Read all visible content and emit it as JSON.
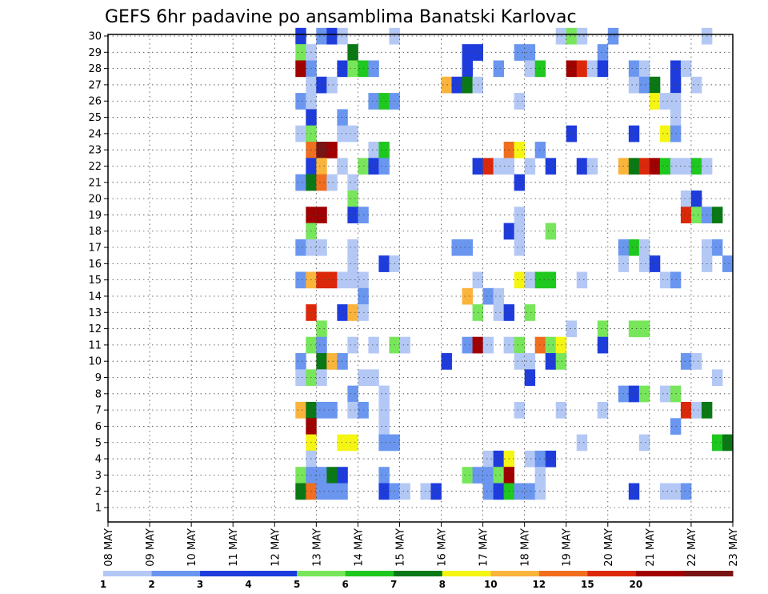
{
  "chart_data": {
    "type": "heatmap",
    "title": "GEFS 6hr padavine po ansamblima Banatski Karlovac",
    "xlabel": "",
    "ylabel": "",
    "x_tick_labels": [
      "08 MAY",
      "09 MAY",
      "10 MAY",
      "11 MAY",
      "12 MAY",
      "13 MAY",
      "14 MAY",
      "15 MAY",
      "16 MAY",
      "17 MAY",
      "18 MAY",
      "19 MAY",
      "20 MAY",
      "21 MAY",
      "22 MAY",
      "23 MAY"
    ],
    "y_tick_labels": [
      "1",
      "2",
      "3",
      "4",
      "5",
      "6",
      "7",
      "8",
      "9",
      "10",
      "11",
      "12",
      "13",
      "14",
      "15",
      "16",
      "17",
      "18",
      "19",
      "20",
      "21",
      "22",
      "23",
      "24",
      "25",
      "26",
      "27",
      "28",
      "29",
      "30"
    ],
    "time_steps_per_day": 4,
    "grid": true,
    "colorbar": {
      "position": "bottom",
      "labels": [
        "1",
        "2",
        "3",
        "4",
        "5",
        "6",
        "7",
        "8",
        "10",
        "12",
        "15",
        "20"
      ],
      "colors": [
        "#b4c8f5",
        "#6a96f0",
        "#1e3cdc",
        "#1a3cdc",
        "#78e65a",
        "#1ec81e",
        "#0a7814",
        "#f5f514",
        "#fab43c",
        "#f06e1e",
        "#dc280a",
        "#a00000",
        "#781414"
      ]
    },
    "cells": [
      {
        "m": 30,
        "t": 18,
        "c": 2
      },
      {
        "m": 30,
        "t": 20,
        "c": 1
      },
      {
        "m": 30,
        "t": 21,
        "c": 2
      },
      {
        "m": 30,
        "t": 22,
        "c": 0
      },
      {
        "m": 30,
        "t": 27,
        "c": 0
      },
      {
        "m": 30,
        "t": 43,
        "c": 0
      },
      {
        "m": 30,
        "t": 44,
        "c": 4
      },
      {
        "m": 30,
        "t": 45,
        "c": 0
      },
      {
        "m": 30,
        "t": 48,
        "c": 1
      },
      {
        "m": 30,
        "t": 57,
        "c": 0
      },
      {
        "m": 29,
        "t": 18,
        "c": 4
      },
      {
        "m": 29,
        "t": 19,
        "c": 0
      },
      {
        "m": 29,
        "t": 23,
        "c": 6
      },
      {
        "m": 29,
        "t": 34,
        "c": 2
      },
      {
        "m": 29,
        "t": 35,
        "c": 2
      },
      {
        "m": 29,
        "t": 39,
        "c": 1
      },
      {
        "m": 29,
        "t": 40,
        "c": 1
      },
      {
        "m": 29,
        "t": 47,
        "c": 1
      },
      {
        "m": 28,
        "t": 18,
        "c": 11
      },
      {
        "m": 28,
        "t": 19,
        "c": 1
      },
      {
        "m": 28,
        "t": 22,
        "c": 2
      },
      {
        "m": 28,
        "t": 23,
        "c": 4
      },
      {
        "m": 28,
        "t": 24,
        "c": 5
      },
      {
        "m": 28,
        "t": 25,
        "c": 1
      },
      {
        "m": 28,
        "t": 34,
        "c": 2
      },
      {
        "m": 28,
        "t": 37,
        "c": 1
      },
      {
        "m": 28,
        "t": 40,
        "c": 0
      },
      {
        "m": 28,
        "t": 41,
        "c": 5
      },
      {
        "m": 28,
        "t": 44,
        "c": 11
      },
      {
        "m": 28,
        "t": 45,
        "c": 10
      },
      {
        "m": 28,
        "t": 46,
        "c": 0
      },
      {
        "m": 28,
        "t": 47,
        "c": 2
      },
      {
        "m": 28,
        "t": 50,
        "c": 1
      },
      {
        "m": 28,
        "t": 51,
        "c": 0
      },
      {
        "m": 28,
        "t": 54,
        "c": 2
      },
      {
        "m": 28,
        "t": 55,
        "c": 0
      },
      {
        "m": 27,
        "t": 19,
        "c": 0
      },
      {
        "m": 27,
        "t": 20,
        "c": 2
      },
      {
        "m": 27,
        "t": 21,
        "c": 0
      },
      {
        "m": 27,
        "t": 32,
        "c": 8
      },
      {
        "m": 27,
        "t": 33,
        "c": 2
      },
      {
        "m": 27,
        "t": 34,
        "c": 6
      },
      {
        "m": 27,
        "t": 35,
        "c": 0
      },
      {
        "m": 27,
        "t": 50,
        "c": 0
      },
      {
        "m": 27,
        "t": 51,
        "c": 1
      },
      {
        "m": 27,
        "t": 52,
        "c": 6
      },
      {
        "m": 27,
        "t": 54,
        "c": 2
      },
      {
        "m": 27,
        "t": 56,
        "c": 0
      },
      {
        "m": 26,
        "t": 18,
        "c": 1
      },
      {
        "m": 26,
        "t": 19,
        "c": 0
      },
      {
        "m": 26,
        "t": 25,
        "c": 1
      },
      {
        "m": 26,
        "t": 26,
        "c": 5
      },
      {
        "m": 26,
        "t": 27,
        "c": 1
      },
      {
        "m": 26,
        "t": 39,
        "c": 0
      },
      {
        "m": 26,
        "t": 52,
        "c": 7
      },
      {
        "m": 26,
        "t": 53,
        "c": 0
      },
      {
        "m": 26,
        "t": 54,
        "c": 0
      },
      {
        "m": 25,
        "t": 19,
        "c": 2
      },
      {
        "m": 25,
        "t": 22,
        "c": 1
      },
      {
        "m": 25,
        "t": 54,
        "c": 0
      },
      {
        "m": 24,
        "t": 18,
        "c": 0
      },
      {
        "m": 24,
        "t": 19,
        "c": 4
      },
      {
        "m": 24,
        "t": 22,
        "c": 0
      },
      {
        "m": 24,
        "t": 23,
        "c": 0
      },
      {
        "m": 24,
        "t": 44,
        "c": 2
      },
      {
        "m": 24,
        "t": 50,
        "c": 2
      },
      {
        "m": 24,
        "t": 53,
        "c": 7
      },
      {
        "m": 24,
        "t": 54,
        "c": 1
      },
      {
        "m": 23,
        "t": 19,
        "c": 9
      },
      {
        "m": 23,
        "t": 20,
        "c": 12
      },
      {
        "m": 23,
        "t": 21,
        "c": 11
      },
      {
        "m": 23,
        "t": 25,
        "c": 0
      },
      {
        "m": 23,
        "t": 26,
        "c": 5
      },
      {
        "m": 23,
        "t": 38,
        "c": 9
      },
      {
        "m": 23,
        "t": 39,
        "c": 7
      },
      {
        "m": 23,
        "t": 41,
        "c": 1
      },
      {
        "m": 22,
        "t": 19,
        "c": 2
      },
      {
        "m": 22,
        "t": 20,
        "c": 8
      },
      {
        "m": 22,
        "t": 22,
        "c": 0
      },
      {
        "m": 22,
        "t": 24,
        "c": 4
      },
      {
        "m": 22,
        "t": 25,
        "c": 2
      },
      {
        "m": 22,
        "t": 26,
        "c": 1
      },
      {
        "m": 22,
        "t": 35,
        "c": 2
      },
      {
        "m": 22,
        "t": 36,
        "c": 10
      },
      {
        "m": 22,
        "t": 37,
        "c": 0
      },
      {
        "m": 22,
        "t": 38,
        "c": 0
      },
      {
        "m": 22,
        "t": 40,
        "c": 0
      },
      {
        "m": 22,
        "t": 42,
        "c": 2
      },
      {
        "m": 22,
        "t": 45,
        "c": 2
      },
      {
        "m": 22,
        "t": 46,
        "c": 0
      },
      {
        "m": 22,
        "t": 49,
        "c": 8
      },
      {
        "m": 22,
        "t": 50,
        "c": 6
      },
      {
        "m": 22,
        "t": 51,
        "c": 10
      },
      {
        "m": 22,
        "t": 52,
        "c": 11
      },
      {
        "m": 22,
        "t": 53,
        "c": 5
      },
      {
        "m": 22,
        "t": 54,
        "c": 0
      },
      {
        "m": 22,
        "t": 55,
        "c": 0
      },
      {
        "m": 22,
        "t": 56,
        "c": 5
      },
      {
        "m": 22,
        "t": 57,
        "c": 0
      },
      {
        "m": 21,
        "t": 18,
        "c": 1
      },
      {
        "m": 21,
        "t": 19,
        "c": 6
      },
      {
        "m": 21,
        "t": 20,
        "c": 9
      },
      {
        "m": 21,
        "t": 21,
        "c": 0
      },
      {
        "m": 21,
        "t": 23,
        "c": 0
      },
      {
        "m": 21,
        "t": 39,
        "c": 2
      },
      {
        "m": 20,
        "t": 23,
        "c": 4
      },
      {
        "m": 20,
        "t": 55,
        "c": 0
      },
      {
        "m": 20,
        "t": 56,
        "c": 2
      },
      {
        "m": 19,
        "t": 19,
        "c": 11
      },
      {
        "m": 19,
        "t": 20,
        "c": 11
      },
      {
        "m": 19,
        "t": 23,
        "c": 2
      },
      {
        "m": 19,
        "t": 24,
        "c": 1
      },
      {
        "m": 19,
        "t": 39,
        "c": 0
      },
      {
        "m": 19,
        "t": 55,
        "c": 10
      },
      {
        "m": 19,
        "t": 56,
        "c": 4
      },
      {
        "m": 19,
        "t": 57,
        "c": 1
      },
      {
        "m": 19,
        "t": 58,
        "c": 6
      },
      {
        "m": 18,
        "t": 19,
        "c": 4
      },
      {
        "m": 18,
        "t": 38,
        "c": 2
      },
      {
        "m": 18,
        "t": 39,
        "c": 0
      },
      {
        "m": 18,
        "t": 42,
        "c": 4
      },
      {
        "m": 17,
        "t": 18,
        "c": 1
      },
      {
        "m": 17,
        "t": 19,
        "c": 0
      },
      {
        "m": 17,
        "t": 20,
        "c": 0
      },
      {
        "m": 17,
        "t": 23,
        "c": 0
      },
      {
        "m": 17,
        "t": 33,
        "c": 1
      },
      {
        "m": 17,
        "t": 34,
        "c": 1
      },
      {
        "m": 17,
        "t": 39,
        "c": 0
      },
      {
        "m": 17,
        "t": 49,
        "c": 1
      },
      {
        "m": 17,
        "t": 50,
        "c": 5
      },
      {
        "m": 17,
        "t": 51,
        "c": 0
      },
      {
        "m": 17,
        "t": 57,
        "c": 0
      },
      {
        "m": 17,
        "t": 58,
        "c": 1
      },
      {
        "m": 16,
        "t": 23,
        "c": 0
      },
      {
        "m": 16,
        "t": 26,
        "c": 2
      },
      {
        "m": 16,
        "t": 27,
        "c": 0
      },
      {
        "m": 16,
        "t": 49,
        "c": 0
      },
      {
        "m": 16,
        "t": 51,
        "c": 0
      },
      {
        "m": 16,
        "t": 52,
        "c": 2
      },
      {
        "m": 16,
        "t": 57,
        "c": 0
      },
      {
        "m": 16,
        "t": 59,
        "c": 1
      },
      {
        "m": 15,
        "t": 18,
        "c": 1
      },
      {
        "m": 15,
        "t": 19,
        "c": 8
      },
      {
        "m": 15,
        "t": 20,
        "c": 10
      },
      {
        "m": 15,
        "t": 21,
        "c": 10
      },
      {
        "m": 15,
        "t": 22,
        "c": 0
      },
      {
        "m": 15,
        "t": 23,
        "c": 0
      },
      {
        "m": 15,
        "t": 24,
        "c": 0
      },
      {
        "m": 15,
        "t": 35,
        "c": 0
      },
      {
        "m": 15,
        "t": 39,
        "c": 7
      },
      {
        "m": 15,
        "t": 40,
        "c": 0
      },
      {
        "m": 15,
        "t": 41,
        "c": 5
      },
      {
        "m": 15,
        "t": 42,
        "c": 5
      },
      {
        "m": 15,
        "t": 45,
        "c": 0
      },
      {
        "m": 15,
        "t": 53,
        "c": 0
      },
      {
        "m": 15,
        "t": 54,
        "c": 1
      },
      {
        "m": 14,
        "t": 24,
        "c": 1
      },
      {
        "m": 14,
        "t": 34,
        "c": 8
      },
      {
        "m": 14,
        "t": 36,
        "c": 1
      },
      {
        "m": 14,
        "t": 37,
        "c": 0
      },
      {
        "m": 13,
        "t": 19,
        "c": 10
      },
      {
        "m": 13,
        "t": 22,
        "c": 2
      },
      {
        "m": 13,
        "t": 23,
        "c": 8
      },
      {
        "m": 13,
        "t": 24,
        "c": 0
      },
      {
        "m": 13,
        "t": 35,
        "c": 4
      },
      {
        "m": 13,
        "t": 37,
        "c": 0
      },
      {
        "m": 13,
        "t": 38,
        "c": 2
      },
      {
        "m": 13,
        "t": 40,
        "c": 4
      },
      {
        "m": 12,
        "t": 20,
        "c": 4
      },
      {
        "m": 12,
        "t": 44,
        "c": 0
      },
      {
        "m": 12,
        "t": 47,
        "c": 4
      },
      {
        "m": 12,
        "t": 50,
        "c": 4
      },
      {
        "m": 12,
        "t": 51,
        "c": 4
      },
      {
        "m": 11,
        "t": 19,
        "c": 4
      },
      {
        "m": 11,
        "t": 20,
        "c": 1
      },
      {
        "m": 11,
        "t": 23,
        "c": 0
      },
      {
        "m": 11,
        "t": 25,
        "c": 0
      },
      {
        "m": 11,
        "t": 27,
        "c": 4
      },
      {
        "m": 11,
        "t": 28,
        "c": 0
      },
      {
        "m": 11,
        "t": 34,
        "c": 1
      },
      {
        "m": 11,
        "t": 35,
        "c": 11
      },
      {
        "m": 11,
        "t": 36,
        "c": 0
      },
      {
        "m": 11,
        "t": 38,
        "c": 0
      },
      {
        "m": 11,
        "t": 39,
        "c": 4
      },
      {
        "m": 11,
        "t": 41,
        "c": 9
      },
      {
        "m": 11,
        "t": 42,
        "c": 4
      },
      {
        "m": 11,
        "t": 43,
        "c": 7
      },
      {
        "m": 11,
        "t": 47,
        "c": 2
      },
      {
        "m": 10,
        "t": 18,
        "c": 1
      },
      {
        "m": 10,
        "t": 20,
        "c": 6
      },
      {
        "m": 10,
        "t": 21,
        "c": 8
      },
      {
        "m": 10,
        "t": 22,
        "c": 1
      },
      {
        "m": 10,
        "t": 32,
        "c": 2
      },
      {
        "m": 10,
        "t": 39,
        "c": 0
      },
      {
        "m": 10,
        "t": 40,
        "c": 0
      },
      {
        "m": 10,
        "t": 42,
        "c": 2
      },
      {
        "m": 10,
        "t": 43,
        "c": 4
      },
      {
        "m": 10,
        "t": 55,
        "c": 1
      },
      {
        "m": 10,
        "t": 56,
        "c": 0
      },
      {
        "m": 9,
        "t": 18,
        "c": 0
      },
      {
        "m": 9,
        "t": 19,
        "c": 4
      },
      {
        "m": 9,
        "t": 20,
        "c": 0
      },
      {
        "m": 9,
        "t": 24,
        "c": 0
      },
      {
        "m": 9,
        "t": 25,
        "c": 0
      },
      {
        "m": 9,
        "t": 40,
        "c": 2
      },
      {
        "m": 9,
        "t": 58,
        "c": 0
      },
      {
        "m": 8,
        "t": 23,
        "c": 1
      },
      {
        "m": 8,
        "t": 26,
        "c": 0
      },
      {
        "m": 8,
        "t": 49,
        "c": 1
      },
      {
        "m": 8,
        "t": 50,
        "c": 2
      },
      {
        "m": 8,
        "t": 51,
        "c": 4
      },
      {
        "m": 8,
        "t": 53,
        "c": 0
      },
      {
        "m": 8,
        "t": 54,
        "c": 4
      },
      {
        "m": 7,
        "t": 18,
        "c": 8
      },
      {
        "m": 7,
        "t": 19,
        "c": 6
      },
      {
        "m": 7,
        "t": 20,
        "c": 1
      },
      {
        "m": 7,
        "t": 21,
        "c": 1
      },
      {
        "m": 7,
        "t": 23,
        "c": 0
      },
      {
        "m": 7,
        "t": 24,
        "c": 1
      },
      {
        "m": 7,
        "t": 26,
        "c": 0
      },
      {
        "m": 7,
        "t": 39,
        "c": 0
      },
      {
        "m": 7,
        "t": 43,
        "c": 0
      },
      {
        "m": 7,
        "t": 47,
        "c": 0
      },
      {
        "m": 7,
        "t": 55,
        "c": 10
      },
      {
        "m": 7,
        "t": 56,
        "c": 0
      },
      {
        "m": 7,
        "t": 57,
        "c": 6
      },
      {
        "m": 6,
        "t": 19,
        "c": 11
      },
      {
        "m": 6,
        "t": 26,
        "c": 0
      },
      {
        "m": 6,
        "t": 54,
        "c": 1
      },
      {
        "m": 5,
        "t": 19,
        "c": 7
      },
      {
        "m": 5,
        "t": 22,
        "c": 7
      },
      {
        "m": 5,
        "t": 23,
        "c": 7
      },
      {
        "m": 5,
        "t": 26,
        "c": 1
      },
      {
        "m": 5,
        "t": 27,
        "c": 1
      },
      {
        "m": 5,
        "t": 45,
        "c": 0
      },
      {
        "m": 5,
        "t": 51,
        "c": 0
      },
      {
        "m": 5,
        "t": 58,
        "c": 5
      },
      {
        "m": 5,
        "t": 59,
        "c": 6
      },
      {
        "m": 4,
        "t": 19,
        "c": 0
      },
      {
        "m": 4,
        "t": 36,
        "c": 0
      },
      {
        "m": 4,
        "t": 37,
        "c": 2
      },
      {
        "m": 4,
        "t": 38,
        "c": 7
      },
      {
        "m": 4,
        "t": 40,
        "c": 0
      },
      {
        "m": 4,
        "t": 41,
        "c": 1
      },
      {
        "m": 4,
        "t": 42,
        "c": 2
      },
      {
        "m": 3,
        "t": 18,
        "c": 4
      },
      {
        "m": 3,
        "t": 19,
        "c": 1
      },
      {
        "m": 3,
        "t": 20,
        "c": 1
      },
      {
        "m": 3,
        "t": 21,
        "c": 6
      },
      {
        "m": 3,
        "t": 22,
        "c": 2
      },
      {
        "m": 3,
        "t": 26,
        "c": 1
      },
      {
        "m": 3,
        "t": 34,
        "c": 4
      },
      {
        "m": 3,
        "t": 35,
        "c": 1
      },
      {
        "m": 3,
        "t": 36,
        "c": 1
      },
      {
        "m": 3,
        "t": 37,
        "c": 4
      },
      {
        "m": 3,
        "t": 38,
        "c": 11
      },
      {
        "m": 3,
        "t": 41,
        "c": 0
      },
      {
        "m": 2,
        "t": 18,
        "c": 6
      },
      {
        "m": 2,
        "t": 19,
        "c": 9
      },
      {
        "m": 2,
        "t": 20,
        "c": 1
      },
      {
        "m": 2,
        "t": 21,
        "c": 1
      },
      {
        "m": 2,
        "t": 22,
        "c": 1
      },
      {
        "m": 2,
        "t": 26,
        "c": 2
      },
      {
        "m": 2,
        "t": 27,
        "c": 1
      },
      {
        "m": 2,
        "t": 28,
        "c": 0
      },
      {
        "m": 2,
        "t": 30,
        "c": 0
      },
      {
        "m": 2,
        "t": 31,
        "c": 2
      },
      {
        "m": 2,
        "t": 36,
        "c": 1
      },
      {
        "m": 2,
        "t": 37,
        "c": 2
      },
      {
        "m": 2,
        "t": 38,
        "c": 5
      },
      {
        "m": 2,
        "t": 39,
        "c": 1
      },
      {
        "m": 2,
        "t": 40,
        "c": 1
      },
      {
        "m": 2,
        "t": 41,
        "c": 0
      },
      {
        "m": 2,
        "t": 50,
        "c": 2
      },
      {
        "m": 2,
        "t": 53,
        "c": 0
      },
      {
        "m": 2,
        "t": 54,
        "c": 0
      },
      {
        "m": 2,
        "t": 55,
        "c": 1
      }
    ]
  }
}
